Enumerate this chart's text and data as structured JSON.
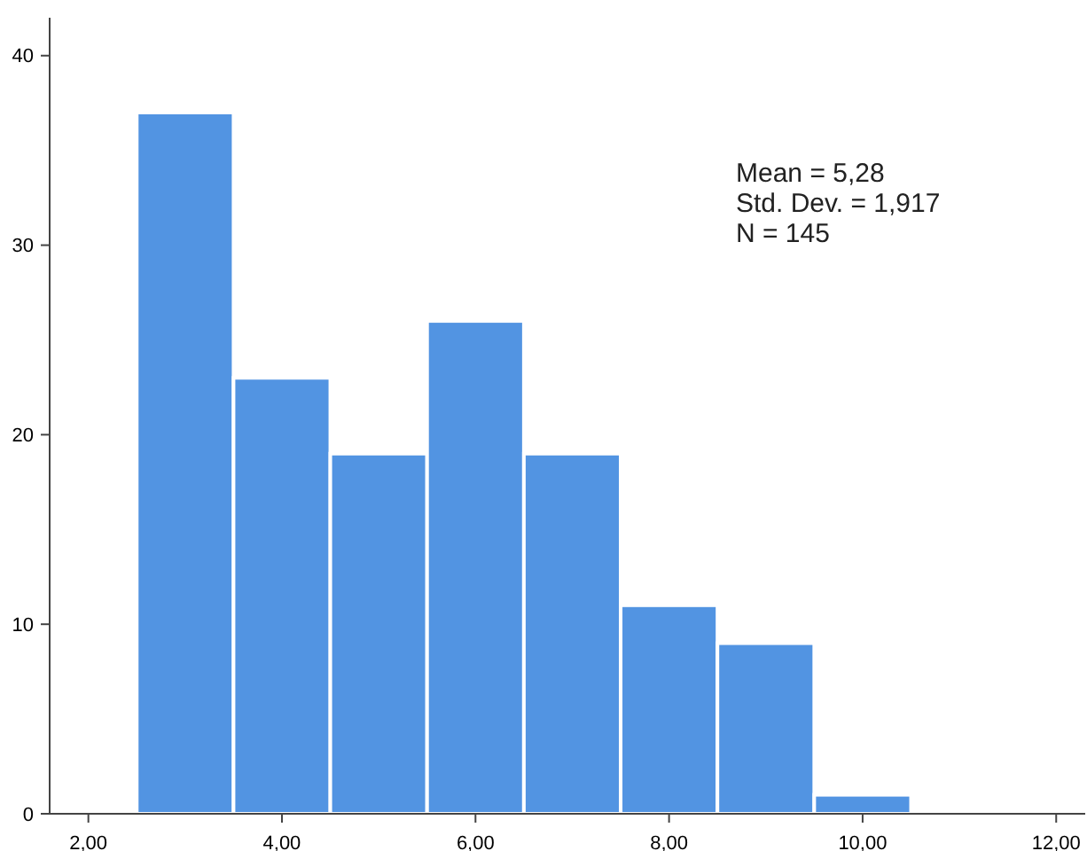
{
  "chart_data": {
    "type": "histogram",
    "bins": [
      2.5,
      3.5,
      4.5,
      5.5,
      6.5,
      7.5,
      8.5,
      9.5,
      10.5
    ],
    "values": [
      37,
      23,
      19,
      26,
      19,
      11,
      9,
      1
    ],
    "color": "#5294e2",
    "xlim": [
      1.6,
      12.3
    ],
    "xticks": [
      {
        "value": 2,
        "label": "2,00"
      },
      {
        "value": 4,
        "label": "4,00"
      },
      {
        "value": 6,
        "label": "6,00"
      },
      {
        "value": 8,
        "label": "8,00"
      },
      {
        "value": 10,
        "label": "10,00"
      },
      {
        "value": 12,
        "label": "12,00"
      }
    ],
    "ylim": [
      0,
      42
    ],
    "yticks": [
      0,
      10,
      20,
      30,
      40
    ],
    "annotations": [
      "Mean = 5,28",
      "Std. Dev. = 1,917",
      "N = 145"
    ]
  }
}
